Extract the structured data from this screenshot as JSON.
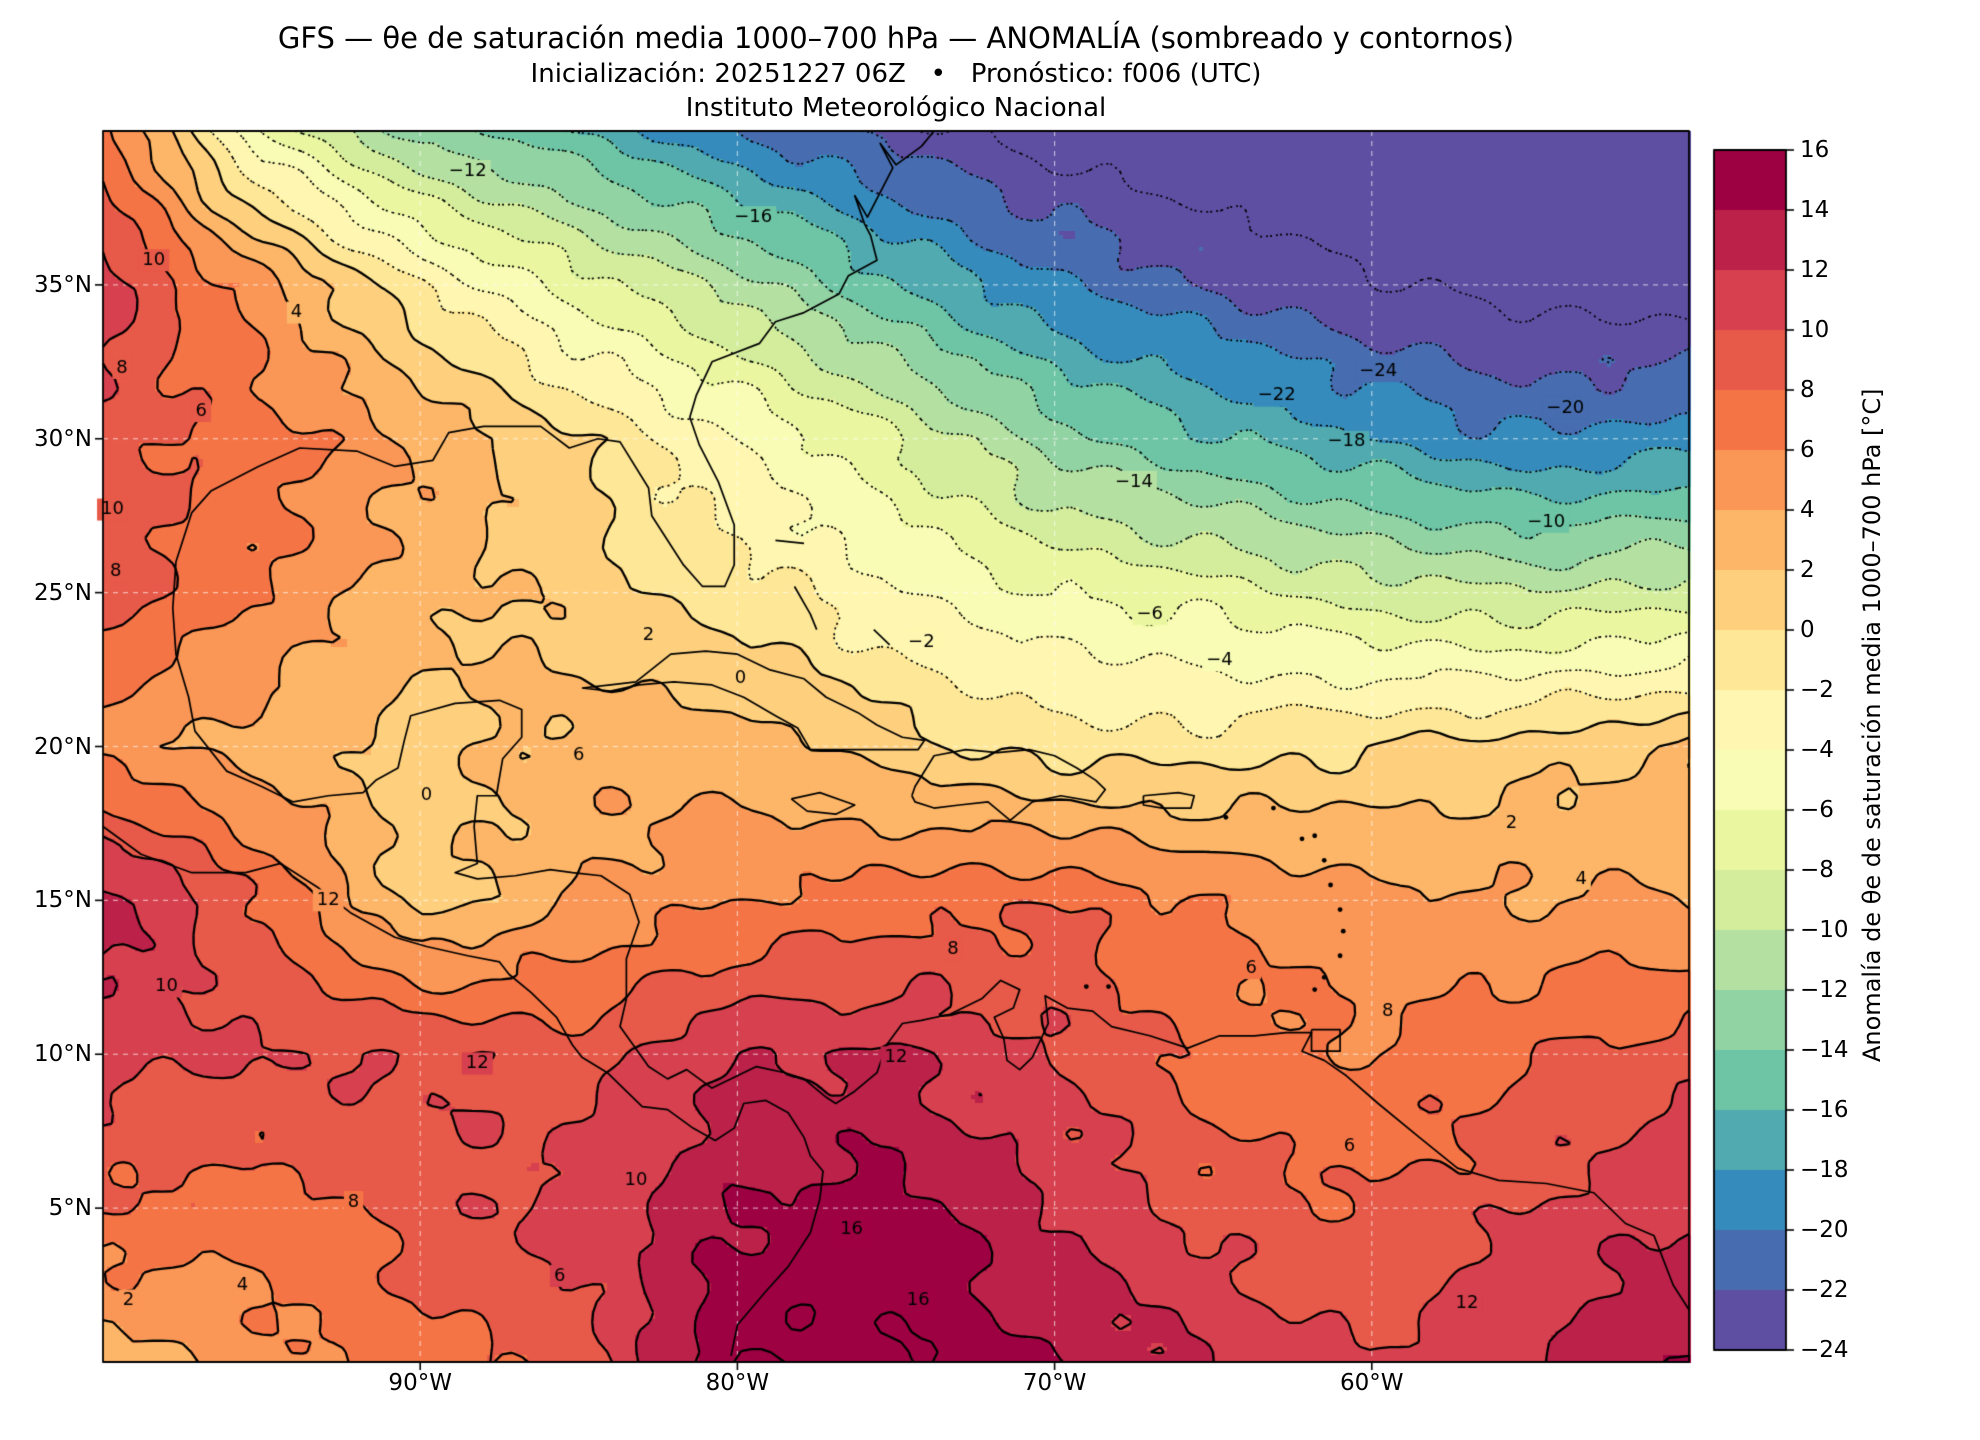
{
  "figure": {
    "title": "GFS — θe de saturación media 1000–700 hPa — ANOMALÍA (sombreado y contornos)",
    "subtitle": "Inicialización: 20251227 06Z   •   Pronóstico: f006 (UTC)",
    "institution": "Instituto Meteorológico Nacional"
  },
  "axes": {
    "lat_range": [
      0,
      40
    ],
    "lon_range": [
      -100,
      -50
    ],
    "lat_ticks": [
      {
        "value": 35,
        "label": "35°N"
      },
      {
        "value": 30,
        "label": "30°N"
      },
      {
        "value": 25,
        "label": "25°N"
      },
      {
        "value": 20,
        "label": "20°N"
      },
      {
        "value": 15,
        "label": "15°N"
      },
      {
        "value": 10,
        "label": "10°N"
      },
      {
        "value": 5,
        "label": "5°N"
      }
    ],
    "lon_ticks": [
      {
        "value": -90,
        "label": "90°W"
      },
      {
        "value": -80,
        "label": "80°W"
      },
      {
        "value": -70,
        "label": "70°W"
      },
      {
        "value": -60,
        "label": "60°W"
      }
    ],
    "grid_lats": [
      5,
      10,
      15,
      20,
      25,
      30,
      35
    ],
    "grid_lons": [
      -90,
      -80,
      -70,
      -60
    ]
  },
  "colorbar": {
    "label": "Anomalía de θe de saturación media 1000–700 hPa [°C]",
    "min": -24,
    "max": 16,
    "step": 2,
    "ticks": [
      16,
      14,
      12,
      10,
      8,
      6,
      4,
      2,
      0,
      -2,
      -4,
      -6,
      -8,
      -10,
      -12,
      -14,
      -16,
      -18,
      -20,
      -22,
      -24
    ],
    "spectral_anchors": [
      "#9e0142",
      "#d53e4f",
      "#f46d43",
      "#fdae61",
      "#fee08b",
      "#ffffbf",
      "#e6f598",
      "#abdda4",
      "#66c2a5",
      "#3288bd",
      "#5e4fa2"
    ]
  },
  "chart_data": {
    "type": "heatmap",
    "title": "GFS — θe de saturación media 1000–700 hPa — ANOMALÍA (sombreado y contornos)",
    "units": "°C",
    "field": "Anomalía de θe de saturación media 1000–700 hPa",
    "model_init": "20251227 06Z",
    "forecast_hour": "f006 (UTC)",
    "colormap": "Spectral_r",
    "contour_levels_min": -24,
    "contour_levels_max": 16,
    "contour_levels_step": 2,
    "negative_contour_style": "dotted",
    "positive_contour_style": "solid",
    "lats": [
      40,
      35,
      30,
      25,
      20,
      15,
      10,
      5,
      0
    ],
    "lons": [
      -100,
      -95,
      -90,
      -85,
      -80,
      -75,
      -70,
      -65,
      -60,
      -55,
      -50
    ],
    "anomaly_grid": [
      [
        7,
        -6,
        -13,
        -16,
        -20,
        -23,
        -25,
        -26,
        -26,
        -26,
        -26
      ],
      [
        11,
        5,
        -2,
        -7,
        -11,
        -16,
        -20,
        -22,
        -24,
        -25,
        -25
      ],
      [
        9,
        7,
        4,
        0,
        -4,
        -8,
        -13,
        -16,
        -18,
        -20,
        -19
      ],
      [
        9,
        6,
        3,
        1,
        -1,
        -4,
        -6,
        -7,
        -9,
        -10,
        -9
      ],
      [
        5,
        3,
        1,
        3,
        3,
        1,
        -1,
        -1,
        0,
        1,
        2
      ],
      [
        13,
        8,
        1,
        4,
        6,
        7,
        8,
        6,
        5,
        4,
        4
      ],
      [
        11,
        10,
        10,
        9,
        12,
        12,
        10,
        7,
        6,
        8,
        9
      ],
      [
        8,
        7,
        9,
        11,
        14,
        15,
        12,
        9,
        8,
        10,
        12
      ],
      [
        3,
        5,
        7,
        9,
        16,
        16,
        14,
        12,
        10,
        12,
        14
      ]
    ],
    "contour_labels": [
      {
        "v": -12,
        "lon": -88.5,
        "lat": 38.7
      },
      {
        "v": -16,
        "lon": -79.5,
        "lat": 37.2
      },
      {
        "v": -24,
        "lon": -59.8,
        "lat": 32.2
      },
      {
        "v": -22,
        "lon": -63.0,
        "lat": 31.4
      },
      {
        "v": -20,
        "lon": -53.9,
        "lat": 31.0
      },
      {
        "v": -18,
        "lon": -60.8,
        "lat": 29.9
      },
      {
        "v": -14,
        "lon": -67.5,
        "lat": 28.6
      },
      {
        "v": -10,
        "lon": -54.5,
        "lat": 27.3
      },
      {
        "v": -6,
        "lon": -67.0,
        "lat": 24.3
      },
      {
        "v": -4,
        "lon": -64.8,
        "lat": 22.8
      },
      {
        "v": -2,
        "lon": -74.2,
        "lat": 23.4
      },
      {
        "v": 2,
        "lon": -82.8,
        "lat": 23.6
      },
      {
        "v": 0,
        "lon": -79.9,
        "lat": 22.2
      },
      {
        "v": 0,
        "lon": -89.8,
        "lat": 18.4
      },
      {
        "v": 6,
        "lon": -85.0,
        "lat": 19.7
      },
      {
        "v": 2,
        "lon": -55.6,
        "lat": 17.5
      },
      {
        "v": 4,
        "lon": -53.4,
        "lat": 15.7
      },
      {
        "v": 6,
        "lon": -63.8,
        "lat": 12.8
      },
      {
        "v": 8,
        "lon": -73.2,
        "lat": 13.4
      },
      {
        "v": 8,
        "lon": -59.5,
        "lat": 11.4
      },
      {
        "v": 6,
        "lon": -60.7,
        "lat": 7.0
      },
      {
        "v": 12,
        "lon": -92.9,
        "lat": 15.0
      },
      {
        "v": 10,
        "lon": -98.0,
        "lat": 12.2
      },
      {
        "v": 12,
        "lon": -88.2,
        "lat": 9.7
      },
      {
        "v": 12,
        "lon": -75.0,
        "lat": 9.9
      },
      {
        "v": 10,
        "lon": -83.2,
        "lat": 5.9
      },
      {
        "v": 8,
        "lon": -92.1,
        "lat": 5.2
      },
      {
        "v": 6,
        "lon": -85.6,
        "lat": 2.8
      },
      {
        "v": 4,
        "lon": -95.6,
        "lat": 2.5
      },
      {
        "v": 2,
        "lon": -99.2,
        "lat": 2.0
      },
      {
        "v": 16,
        "lon": -76.4,
        "lat": 4.3
      },
      {
        "v": 16,
        "lon": -74.3,
        "lat": 2.0
      },
      {
        "v": 12,
        "lon": -57.0,
        "lat": 1.9
      },
      {
        "v": 10,
        "lon": -98.4,
        "lat": 35.8
      },
      {
        "v": 4,
        "lon": -93.9,
        "lat": 34.1
      },
      {
        "v": 8,
        "lon": -99.4,
        "lat": 32.3
      },
      {
        "v": 6,
        "lon": -96.9,
        "lat": 30.9
      },
      {
        "v": 10,
        "lon": -99.7,
        "lat": 27.7
      },
      {
        "v": 8,
        "lon": -99.6,
        "lat": 25.7
      }
    ]
  },
  "geo": {
    "coastlines": [
      [
        [
          -73.8,
          40.0
        ],
        [
          -74.2,
          39.5
        ],
        [
          -75.0,
          38.9
        ],
        [
          -75.5,
          39.6
        ],
        [
          -75.1,
          38.8
        ],
        [
          -75.9,
          37.2
        ],
        [
          -76.3,
          37.9
        ],
        [
          -76.0,
          37.0
        ],
        [
          -75.8,
          36.6
        ],
        [
          -75.6,
          35.8
        ],
        [
          -76.5,
          35.3
        ],
        [
          -76.8,
          34.7
        ],
        [
          -77.9,
          34.1
        ],
        [
          -78.8,
          33.8
        ],
        [
          -79.3,
          33.1
        ],
        [
          -80.8,
          32.5
        ],
        [
          -81.3,
          31.4
        ],
        [
          -81.5,
          30.7
        ],
        [
          -81.2,
          29.8
        ],
        [
          -80.6,
          28.6
        ],
        [
          -80.1,
          27.2
        ],
        [
          -80.1,
          25.9
        ],
        [
          -80.4,
          25.2
        ],
        [
          -81.1,
          25.2
        ],
        [
          -81.7,
          25.9
        ],
        [
          -82.7,
          27.5
        ],
        [
          -82.8,
          28.4
        ],
        [
          -83.7,
          29.9
        ],
        [
          -84.4,
          30.0
        ],
        [
          -85.3,
          29.7
        ],
        [
          -86.2,
          30.4
        ],
        [
          -88.0,
          30.4
        ],
        [
          -89.1,
          30.2
        ],
        [
          -89.6,
          29.3
        ],
        [
          -90.8,
          29.1
        ],
        [
          -92.0,
          29.6
        ],
        [
          -93.8,
          29.7
        ],
        [
          -95.1,
          29.1
        ],
        [
          -96.6,
          28.3
        ],
        [
          -97.2,
          27.6
        ],
        [
          -97.7,
          26.0
        ],
        [
          -97.8,
          24.5
        ],
        [
          -97.7,
          23.0
        ],
        [
          -97.3,
          21.6
        ],
        [
          -97.1,
          20.5
        ],
        [
          -96.1,
          19.2
        ],
        [
          -95.0,
          18.7
        ],
        [
          -94.0,
          18.2
        ],
        [
          -92.9,
          18.4
        ],
        [
          -91.8,
          18.5
        ],
        [
          -91.4,
          18.9
        ],
        [
          -90.7,
          19.3
        ],
        [
          -90.5,
          20.2
        ],
        [
          -90.3,
          21.0
        ],
        [
          -88.9,
          21.4
        ],
        [
          -87.5,
          21.5
        ],
        [
          -86.8,
          21.2
        ],
        [
          -86.8,
          20.3
        ],
        [
          -87.4,
          19.6
        ],
        [
          -87.6,
          18.4
        ],
        [
          -88.2,
          18.4
        ],
        [
          -88.3,
          17.4
        ],
        [
          -88.2,
          16.2
        ],
        [
          -88.9,
          15.9
        ],
        [
          -88.2,
          15.7
        ],
        [
          -87.0,
          15.8
        ],
        [
          -85.9,
          16.0
        ],
        [
          -85.2,
          15.9
        ],
        [
          -84.3,
          15.8
        ],
        [
          -83.4,
          15.2
        ],
        [
          -83.1,
          14.3
        ],
        [
          -83.5,
          13.1
        ],
        [
          -83.5,
          11.8
        ],
        [
          -83.7,
          10.9
        ],
        [
          -82.8,
          9.6
        ],
        [
          -82.2,
          9.2
        ],
        [
          -81.6,
          9.5
        ],
        [
          -80.8,
          8.9
        ],
        [
          -80.0,
          9.3
        ],
        [
          -79.4,
          9.6
        ],
        [
          -78.5,
          9.4
        ],
        [
          -77.9,
          9.2
        ],
        [
          -77.2,
          8.6
        ],
        [
          -76.9,
          8.4
        ],
        [
          -76.3,
          8.8
        ],
        [
          -75.6,
          9.4
        ],
        [
          -75.3,
          10.3
        ],
        [
          -74.8,
          11.0
        ],
        [
          -74.2,
          11.1
        ],
        [
          -73.3,
          11.3
        ],
        [
          -72.3,
          11.8
        ],
        [
          -71.7,
          12.4
        ],
        [
          -71.1,
          12.1
        ],
        [
          -71.3,
          11.5
        ],
        [
          -71.9,
          11.2
        ],
        [
          -71.6,
          10.5
        ],
        [
          -71.5,
          9.8
        ],
        [
          -71.1,
          9.5
        ],
        [
          -70.7,
          9.9
        ],
        [
          -70.2,
          11.0
        ],
        [
          -70.3,
          11.9
        ],
        [
          -69.6,
          11.5
        ],
        [
          -68.8,
          11.4
        ],
        [
          -68.2,
          10.9
        ],
        [
          -67.0,
          10.6
        ],
        [
          -65.8,
          10.2
        ],
        [
          -64.8,
          10.6
        ],
        [
          -63.7,
          10.6
        ],
        [
          -62.7,
          10.7
        ],
        [
          -61.9,
          10.7
        ],
        [
          -62.2,
          10.1
        ],
        [
          -61.5,
          9.8
        ],
        [
          -60.8,
          9.3
        ],
        [
          -59.8,
          8.4
        ],
        [
          -58.5,
          7.3
        ],
        [
          -57.3,
          6.3
        ],
        [
          -56.0,
          5.9
        ],
        [
          -54.5,
          5.8
        ],
        [
          -53.0,
          5.5
        ],
        [
          -52.0,
          4.5
        ],
        [
          -51.1,
          4.1
        ],
        [
          -50.5,
          2.5
        ],
        [
          -50.0,
          1.7
        ]
      ],
      [
        [
          -100.0,
          17.4
        ],
        [
          -98.8,
          16.5
        ],
        [
          -97.2,
          15.9
        ],
        [
          -95.5,
          15.9
        ],
        [
          -94.4,
          16.2
        ],
        [
          -93.2,
          15.4
        ],
        [
          -92.2,
          14.6
        ],
        [
          -90.8,
          13.8
        ],
        [
          -89.8,
          13.5
        ],
        [
          -88.5,
          13.2
        ],
        [
          -87.5,
          13.0
        ],
        [
          -87.2,
          12.6
        ],
        [
          -86.5,
          12.0
        ],
        [
          -85.7,
          11.2
        ],
        [
          -85.2,
          10.3
        ],
        [
          -84.9,
          9.9
        ],
        [
          -84.1,
          9.4
        ],
        [
          -83.6,
          8.9
        ],
        [
          -83.0,
          8.3
        ],
        [
          -82.2,
          8.2
        ],
        [
          -81.4,
          7.6
        ],
        [
          -80.7,
          7.2
        ],
        [
          -80.1,
          7.6
        ],
        [
          -79.8,
          8.4
        ],
        [
          -79.1,
          8.5
        ],
        [
          -78.4,
          8.1
        ],
        [
          -77.9,
          7.3
        ],
        [
          -77.7,
          6.7
        ],
        [
          -77.3,
          6.2
        ],
        [
          -77.4,
          5.3
        ],
        [
          -77.7,
          4.2
        ],
        [
          -78.4,
          3.1
        ],
        [
          -79.1,
          2.3
        ],
        [
          -80.0,
          1.2
        ],
        [
          -80.2,
          0.2
        ]
      ],
      [
        [
          -84.9,
          21.9
        ],
        [
          -84.0,
          22.0
        ],
        [
          -83.2,
          22.1
        ],
        [
          -82.1,
          23.0
        ],
        [
          -81.0,
          23.1
        ],
        [
          -80.0,
          23.0
        ],
        [
          -79.0,
          22.5
        ],
        [
          -77.9,
          22.2
        ],
        [
          -77.2,
          21.6
        ],
        [
          -76.2,
          21.1
        ],
        [
          -75.6,
          20.7
        ],
        [
          -74.8,
          20.3
        ],
        [
          -74.1,
          20.2
        ],
        [
          -74.3,
          19.9
        ],
        [
          -75.5,
          19.9
        ],
        [
          -76.8,
          19.9
        ],
        [
          -77.7,
          19.9
        ],
        [
          -78.1,
          20.6
        ],
        [
          -78.8,
          21.0
        ],
        [
          -79.8,
          21.6
        ],
        [
          -80.8,
          22.0
        ],
        [
          -82.0,
          22.1
        ],
        [
          -83.1,
          22.0
        ],
        [
          -84.0,
          21.8
        ],
        [
          -84.9,
          21.9
        ]
      ],
      [
        [
          -74.5,
          18.4
        ],
        [
          -74.4,
          18.7
        ],
        [
          -73.8,
          19.7
        ],
        [
          -72.8,
          19.9
        ],
        [
          -71.8,
          19.8
        ],
        [
          -70.8,
          19.9
        ],
        [
          -70.0,
          19.7
        ],
        [
          -69.3,
          19.3
        ],
        [
          -68.7,
          18.9
        ],
        [
          -68.4,
          18.6
        ],
        [
          -68.7,
          18.2
        ],
        [
          -69.8,
          18.4
        ],
        [
          -70.7,
          18.2
        ],
        [
          -71.4,
          17.6
        ],
        [
          -72.1,
          18.2
        ],
        [
          -73.0,
          18.1
        ],
        [
          -73.8,
          18.0
        ],
        [
          -74.4,
          18.2
        ],
        [
          -74.5,
          18.4
        ]
      ],
      [
        [
          -78.3,
          18.3
        ],
        [
          -77.4,
          18.5
        ],
        [
          -76.3,
          18.1
        ],
        [
          -76.9,
          17.8
        ],
        [
          -77.8,
          17.9
        ],
        [
          -78.3,
          18.3
        ]
      ],
      [
        [
          -67.2,
          18.4
        ],
        [
          -66.1,
          18.5
        ],
        [
          -65.6,
          18.4
        ],
        [
          -65.7,
          18.0
        ],
        [
          -66.6,
          18.0
        ],
        [
          -67.2,
          18.1
        ],
        [
          -67.2,
          18.4
        ]
      ],
      [
        [
          -61.9,
          10.8
        ],
        [
          -61.0,
          10.8
        ],
        [
          -61.0,
          10.1
        ],
        [
          -61.9,
          10.1
        ],
        [
          -61.9,
          10.8
        ]
      ],
      [
        [
          -78.8,
          26.7
        ],
        [
          -77.9,
          26.6
        ]
      ],
      [
        [
          -78.2,
          25.2
        ],
        [
          -77.7,
          24.3
        ],
        [
          -77.5,
          23.8
        ]
      ],
      [
        [
          -75.7,
          23.8
        ],
        [
          -75.2,
          23.3
        ]
      ]
    ],
    "island_dots": [
      [
        -61.5,
        16.3
      ],
      [
        -61.3,
        15.5
      ],
      [
        -61.0,
        14.7
      ],
      [
        -60.9,
        14.0
      ],
      [
        -61.0,
        13.2
      ],
      [
        -61.5,
        12.5
      ],
      [
        -61.8,
        12.1
      ],
      [
        -63.1,
        18.0
      ],
      [
        -62.2,
        17.0
      ],
      [
        -61.8,
        17.1
      ],
      [
        -69.0,
        12.2
      ],
      [
        -68.3,
        12.2
      ],
      [
        -64.6,
        17.7
      ]
    ]
  }
}
